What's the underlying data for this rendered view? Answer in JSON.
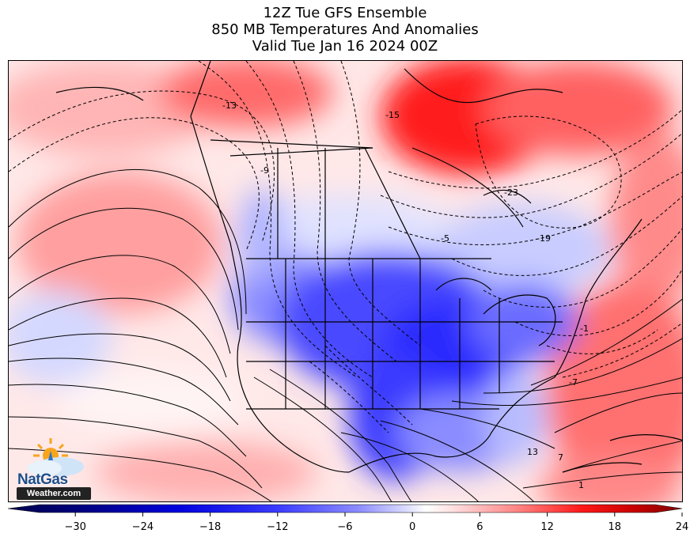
{
  "title": {
    "line1": "12Z Tue GFS Ensemble",
    "line2": "850 MB Temperatures And Anomalies",
    "line3": "Valid Tue Jan 16 2024 00Z"
  },
  "map": {
    "contour_labels": [
      {
        "text": "-13"
      },
      {
        "text": "-15"
      },
      {
        "text": "-9"
      },
      {
        "text": "-23"
      },
      {
        "text": "-5"
      },
      {
        "text": "-19"
      },
      {
        "text": "-1"
      },
      {
        "text": "-7"
      },
      {
        "text": "13"
      },
      {
        "text": "7"
      },
      {
        "text": "1"
      }
    ],
    "colors": {
      "warm_max": "#b40000",
      "warm": "#ff2a2a",
      "warm_light": "#ff9a9a",
      "neutral": "#ffffff",
      "cold_light": "#c8ccff",
      "cold": "#3a3aff",
      "cold_max": "#0a0aa0"
    }
  },
  "logo": {
    "name": "NatGas",
    "site": "Weather.com"
  },
  "colorbar": {
    "min": -36,
    "max": 24,
    "ticks": [
      "−30",
      "−24",
      "−18",
      "−12",
      "−6",
      "0",
      "6",
      "12",
      "18",
      "24"
    ],
    "tick_values": [
      -30,
      -24,
      -18,
      -12,
      -6,
      0,
      6,
      12,
      18,
      24
    ]
  }
}
